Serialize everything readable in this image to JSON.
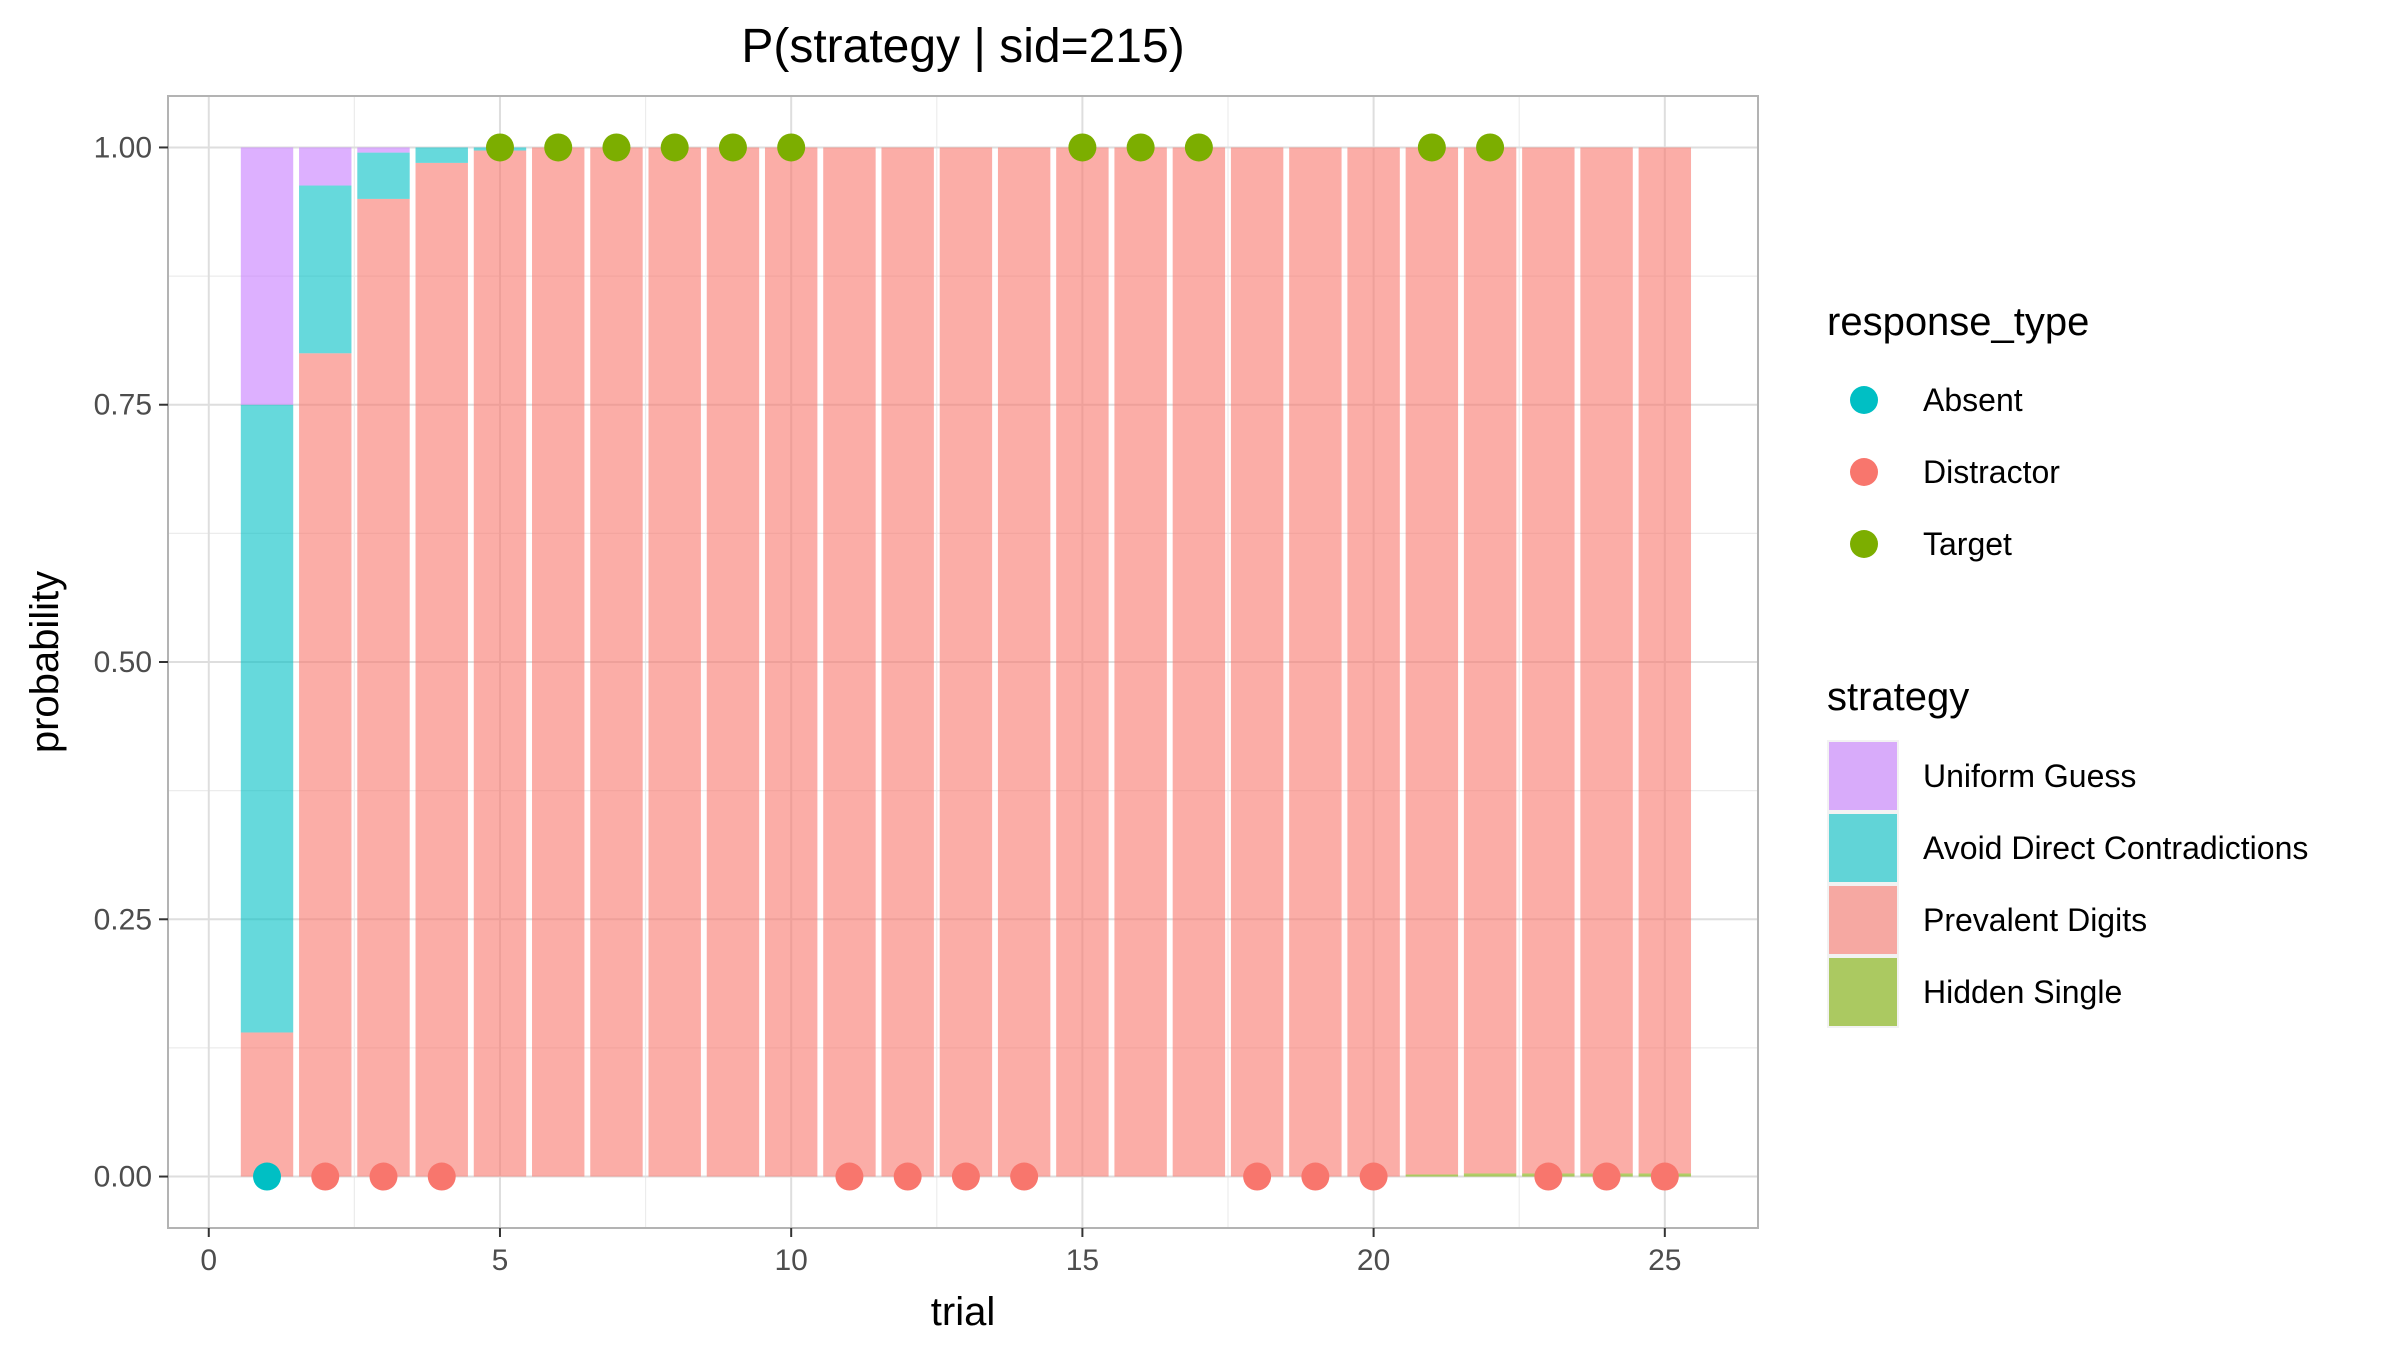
{
  "chart_data": {
    "type": "bar",
    "title": "P(strategy | sid=215)",
    "xlabel": "trial",
    "ylabel": "probability",
    "xlim": [
      -0.7,
      26.6
    ],
    "ylim": [
      -0.05,
      1.05
    ],
    "x_ticks": [
      0,
      5,
      10,
      15,
      20,
      25
    ],
    "y_ticks": [
      0,
      0.25,
      0.5,
      0.75,
      1
    ],
    "x_tick_labels": [
      "0",
      "5",
      "10",
      "15",
      "20",
      "25"
    ],
    "y_tick_labels": [
      "0.00",
      "0.25",
      "0.50",
      "0.75",
      "1.00"
    ],
    "grid": true,
    "stacked": true,
    "x": [
      1,
      2,
      3,
      4,
      5,
      6,
      7,
      8,
      9,
      10,
      11,
      12,
      13,
      14,
      15,
      16,
      17,
      18,
      19,
      20,
      21,
      22,
      23,
      24,
      25
    ],
    "series": [
      {
        "name": "Hidden Single",
        "color": "#7CAE00",
        "values": [
          0,
          0,
          0,
          0,
          0,
          0,
          0,
          0,
          0,
          0,
          0,
          0,
          0,
          0,
          0,
          0,
          0,
          0,
          0,
          0,
          0.002,
          0.003,
          0.003,
          0.003,
          0.003
        ]
      },
      {
        "name": "Prevalent Digits",
        "color": "#F8766D",
        "values": [
          0.14,
          0.8,
          0.95,
          0.985,
          0.997,
          1,
          1,
          1,
          1,
          1,
          1,
          1,
          1,
          1,
          1,
          1,
          1,
          1,
          1,
          1,
          0.998,
          0.997,
          0.997,
          0.997,
          0.997
        ]
      },
      {
        "name": "Avoid Direct Contradictions",
        "color": "#00BFC4",
        "values": [
          0.61,
          0.163,
          0.045,
          0.015,
          0.003,
          0,
          0,
          0,
          0,
          0,
          0,
          0,
          0,
          0,
          0,
          0,
          0,
          0,
          0,
          0,
          0,
          0,
          0,
          0,
          0
        ]
      },
      {
        "name": "Uniform Guess",
        "color": "#C77CFF",
        "values": [
          0.25,
          0.037,
          0.005,
          0,
          0,
          0,
          0,
          0,
          0,
          0,
          0,
          0,
          0,
          0,
          0,
          0,
          0,
          0,
          0,
          0,
          0,
          0,
          0,
          0,
          0
        ]
      }
    ],
    "points": {
      "x": [
        1,
        2,
        3,
        4,
        5,
        6,
        7,
        8,
        9,
        10,
        11,
        12,
        13,
        14,
        15,
        16,
        17,
        18,
        19,
        20,
        21,
        22,
        23,
        24,
        25
      ],
      "y": [
        0,
        0,
        0,
        0,
        1,
        1,
        1,
        1,
        1,
        1,
        0,
        0,
        0,
        0,
        1,
        1,
        1,
        0,
        0,
        0,
        1,
        1,
        0,
        0,
        0
      ],
      "response_type": [
        "Absent",
        "Distractor",
        "Distractor",
        "Distractor",
        "Target",
        "Target",
        "Target",
        "Target",
        "Target",
        "Target",
        "Distractor",
        "Distractor",
        "Distractor",
        "Distractor",
        "Target",
        "Target",
        "Target",
        "Distractor",
        "Distractor",
        "Distractor",
        "Target",
        "Target",
        "Distractor",
        "Distractor",
        "Distractor"
      ]
    },
    "legends": [
      {
        "title": "response_type",
        "kind": "point",
        "entries": [
          {
            "label": "Absent",
            "color": "#00BFC4"
          },
          {
            "label": "Distractor",
            "color": "#F8766D"
          },
          {
            "label": "Target",
            "color": "#7CAE00"
          }
        ]
      },
      {
        "title": "strategy",
        "kind": "fill",
        "entries": [
          {
            "label": "Uniform Guess",
            "color": "#C77CFF"
          },
          {
            "label": "Avoid Direct Contradictions",
            "color": "#00BFC4"
          },
          {
            "label": "Prevalent Digits",
            "color": "#F8766D"
          },
          {
            "label": "Hidden Single",
            "color": "#7CAE00"
          }
        ]
      }
    ],
    "legend_position": "right"
  }
}
